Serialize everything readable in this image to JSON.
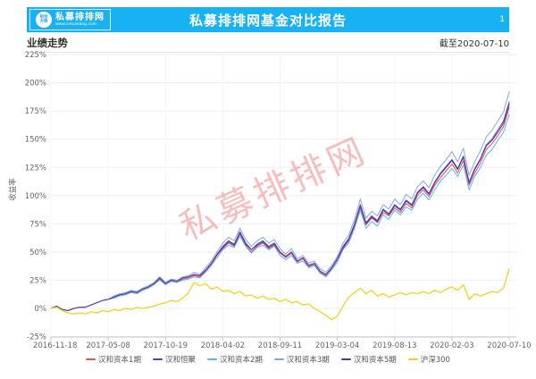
{
  "header": {
    "logo_emblem": "组合大师",
    "logo_text": "私募排排网",
    "logo_url": "www.simuwang.com",
    "title": "私募排排网基金对比报告",
    "page_number": "1"
  },
  "section": {
    "title": "业绩走势",
    "as_of": "截至2020-07-10"
  },
  "colors": {
    "header_blue": "#18b2f2",
    "grid": "#ededed",
    "grid_vertical": "#f4f4f6",
    "axis": "#b9c7e0",
    "tick_text": "#666666",
    "watermark": "#ef8a8a"
  },
  "chart_data": {
    "type": "line",
    "title": "业绩走势",
    "ylabel": "收益率",
    "watermark": "私募排排网",
    "grid": true,
    "legend_position": "bottom",
    "ylim": [
      -25,
      225
    ],
    "y_ticks": [
      225,
      200,
      175,
      150,
      125,
      100,
      75,
      50,
      25,
      0,
      -25
    ],
    "y_tick_suffix": "%",
    "x_tick_labels": [
      "2016-11-18",
      "2017-05-08",
      "2017-10-19",
      "2018-04-02",
      "2018-09-11",
      "2019-03-04",
      "2019-08-13",
      "2020-02-03",
      "2020-07-10"
    ],
    "unit": "percent_return",
    "series": [
      {
        "name": "汉和资本1期",
        "color": "#ee4e5a",
        "values": [
          0,
          2,
          -1,
          -2,
          0,
          1,
          1,
          3,
          5,
          7,
          8,
          10,
          12,
          13,
          15,
          14,
          16,
          18,
          21,
          26,
          21,
          24,
          23,
          26,
          27,
          29,
          28,
          33,
          39,
          47,
          53,
          58,
          55,
          66,
          56,
          50,
          55,
          58,
          53,
          56,
          49,
          45,
          49,
          41,
          44,
          37,
          39,
          32,
          29,
          35,
          43,
          53,
          60,
          73,
          89,
          74,
          80,
          76,
          85,
          82,
          89,
          85,
          93,
          89,
          100,
          105,
          99,
          109,
          116,
          122,
          128,
          120,
          131,
          109,
          120,
          129,
          141,
          146,
          153,
          161,
          178
        ]
      },
      {
        "name": "汉和恒聚",
        "color": "#3a50c8",
        "values": [
          0,
          2,
          -1,
          -2,
          0,
          1,
          1,
          3,
          5,
          7,
          8,
          10,
          12,
          13,
          15,
          14,
          17,
          19,
          22,
          27,
          22,
          25,
          24,
          27,
          28,
          30,
          29,
          34,
          40,
          48,
          55,
          60,
          57,
          68,
          58,
          52,
          57,
          60,
          55,
          58,
          50,
          46,
          50,
          42,
          45,
          38,
          40,
          33,
          30,
          36,
          44,
          55,
          62,
          75,
          92,
          76,
          82,
          78,
          88,
          84,
          92,
          88,
          96,
          92,
          103,
          108,
          102,
          112,
          120,
          126,
          132,
          124,
          135,
          112,
          124,
          133,
          145,
          150,
          158,
          166,
          183
        ]
      },
      {
        "name": "汉和资本2期",
        "color": "#55b9f0",
        "values": [
          0,
          2,
          -1,
          -2,
          0,
          1,
          1,
          3,
          5,
          7,
          8,
          9,
          11,
          12,
          14,
          13,
          16,
          18,
          21,
          25,
          21,
          24,
          23,
          25,
          26,
          28,
          27,
          32,
          38,
          45,
          52,
          56,
          54,
          64,
          55,
          49,
          54,
          56,
          52,
          55,
          47,
          43,
          47,
          40,
          42,
          36,
          38,
          31,
          28,
          34,
          41,
          52,
          58,
          71,
          87,
          71,
          77,
          73,
          83,
          79,
          87,
          83,
          90,
          87,
          97,
          102,
          96,
          105,
          113,
          118,
          124,
          117,
          127,
          105,
          117,
          125,
          136,
          141,
          149,
          156,
          172
        ]
      },
      {
        "name": "汉和资本3期",
        "color": "#8aa4de",
        "values": [
          0,
          2,
          -1,
          -2,
          0,
          1,
          1,
          3,
          5,
          7,
          8,
          11,
          13,
          14,
          16,
          15,
          18,
          20,
          23,
          28,
          23,
          26,
          25,
          28,
          29,
          32,
          30,
          36,
          42,
          50,
          58,
          63,
          60,
          71,
          61,
          55,
          60,
          63,
          58,
          61,
          53,
          48,
          53,
          44,
          47,
          40,
          42,
          35,
          32,
          38,
          46,
          58,
          65,
          79,
          97,
          80,
          86,
          82,
          92,
          88,
          97,
          92,
          101,
          97,
          108,
          113,
          107,
          118,
          126,
          132,
          139,
          130,
          142,
          118,
          130,
          140,
          152,
          158,
          166,
          174,
          192
        ]
      },
      {
        "name": "汉和资本5期",
        "color": "#5a35a0",
        "values": [
          0,
          2,
          -1,
          -2,
          0,
          1,
          1,
          3,
          5,
          7,
          8,
          10,
          12,
          13,
          15,
          14,
          17,
          19,
          22,
          27,
          22,
          25,
          24,
          27,
          28,
          30,
          29,
          34,
          40,
          48,
          54,
          59,
          56,
          67,
          57,
          52,
          56,
          59,
          54,
          57,
          50,
          46,
          50,
          42,
          45,
          38,
          40,
          33,
          30,
          36,
          44,
          54,
          61,
          74,
          91,
          75,
          81,
          77,
          87,
          83,
          91,
          87,
          95,
          91,
          102,
          107,
          101,
          111,
          119,
          125,
          131,
          123,
          134,
          111,
          123,
          132,
          144,
          149,
          156,
          164,
          181
        ]
      },
      {
        "name": "沪深300",
        "color": "#f5d020",
        "values": [
          0,
          1,
          -2,
          -4,
          -5,
          -4,
          -5,
          -3,
          -4,
          -2,
          -3,
          -1,
          -2,
          0,
          -1,
          1,
          0,
          1,
          2,
          4,
          5,
          7,
          6,
          9,
          14,
          23,
          20,
          22,
          17,
          19,
          15,
          16,
          13,
          15,
          11,
          12,
          9,
          11,
          8,
          9,
          6,
          8,
          5,
          6,
          3,
          4,
          0,
          -3,
          -6,
          -10,
          -7,
          2,
          10,
          14,
          18,
          13,
          16,
          11,
          13,
          10,
          12,
          14,
          12,
          14,
          13,
          15,
          13,
          16,
          14,
          17,
          19,
          16,
          21,
          8,
          13,
          11,
          13,
          15,
          14,
          18,
          35
        ]
      }
    ]
  }
}
